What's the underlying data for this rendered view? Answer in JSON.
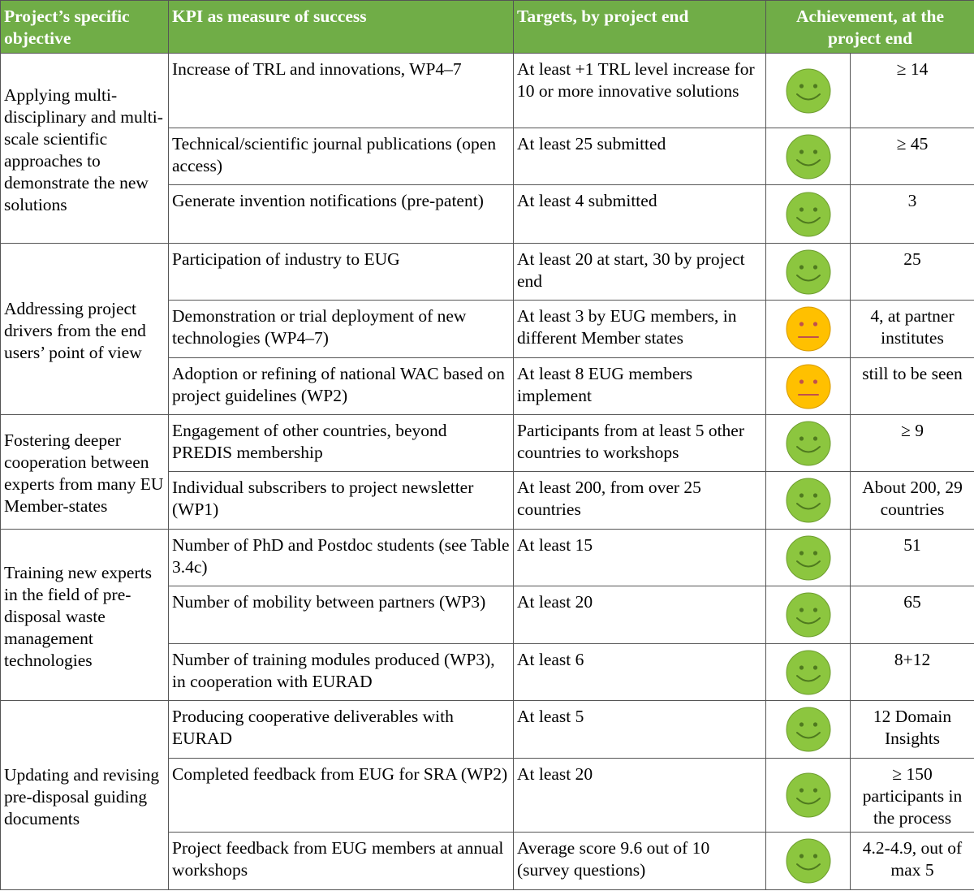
{
  "header": {
    "objective": "Project’s specific objective",
    "kpi": "KPI as measure of success",
    "targets": "Targets, by project end",
    "achievement": "Achievement, at the project end"
  },
  "colors": {
    "header_bg": "#70ad47",
    "green_face": "#8cc63f",
    "yellow_face": "#ffc000"
  },
  "groups": [
    {
      "objective": "Applying multi-disciplinary and multi-scale scientific approaches to demonstrate the new solutions",
      "rows": [
        {
          "kpi": "Increase of TRL and innovations, WP4–7",
          "target": "At least +1 TRL level increase for 10 or more innovative solutions",
          "status": "smiley-green",
          "value": "≥ 14"
        },
        {
          "kpi": "Technical/scientific journal publications (open access)",
          "target": "At least 25 submitted",
          "status": "smiley-green",
          "value": "≥ 45"
        },
        {
          "kpi": "Generate invention notifications (pre-patent)",
          "target": "At least 4 submitted",
          "status": "smiley-green",
          "value": "3"
        }
      ]
    },
    {
      "objective": "Addressing project drivers from the end users’ point of view",
      "rows": [
        {
          "kpi": "Participation of industry to EUG",
          "target": "At least 20 at start, 30 by project end",
          "status": "smiley-green",
          "value": "25"
        },
        {
          "kpi": "Demonstration or trial deployment of new technologies (WP4–7)",
          "target": "At least 3 by EUG members, in different Member states",
          "status": "neutral-yellow",
          "value": "4, at partner institutes"
        },
        {
          "kpi": "Adoption or refining of national WAC based on project guidelines (WP2)",
          "target": "At least 8 EUG members implement",
          "status": "neutral-yellow",
          "value": "still to be seen"
        }
      ]
    },
    {
      "objective": "Fostering deeper cooperation between experts from many EU Member-states",
      "rows": [
        {
          "kpi": "Engagement of other countries, beyond PREDIS membership",
          "target": "Participants from at least 5 other countries to workshops",
          "status": "smiley-green",
          "value": "≥ 9"
        },
        {
          "kpi": "Individual subscribers to project newsletter (WP1)",
          "target": "At least 200, from over 25 countries",
          "status": "smiley-green",
          "value": "About 200, 29 countries"
        }
      ]
    },
    {
      "objective": "Training new experts in the field of pre-disposal waste management technologies",
      "rows": [
        {
          "kpi": "Number of PhD and Postdoc students (see Table 3.4c)",
          "target": "At least 15",
          "status": "smiley-green",
          "value": "51"
        },
        {
          "kpi": "Number of mobility between partners (WP3)",
          "target": "At least 20",
          "status": "smiley-green",
          "value": "65"
        },
        {
          "kpi": "Number of training modules produced (WP3), in cooperation with EURAD",
          "target": "At least 6",
          "status": "smiley-green",
          "value": "8+12"
        }
      ]
    },
    {
      "objective": "Updating and revising pre-disposal guiding documents",
      "rows": [
        {
          "kpi": "Producing cooperative deliverables with EURAD",
          "target": "At least 5",
          "status": "smiley-green",
          "value": "12 Domain Insights"
        },
        {
          "kpi": "Completed feedback from EUG for SRA (WP2)",
          "target": "At least 20",
          "status": "smiley-green",
          "value": "≥ 150 participants in the process"
        },
        {
          "kpi": "Project feedback from EUG members at annual workshops",
          "target": "Average score 9.6 out of 10 (survey questions)",
          "status": "smiley-green",
          "value": "4.2-4.9, out of max 5"
        }
      ]
    }
  ]
}
